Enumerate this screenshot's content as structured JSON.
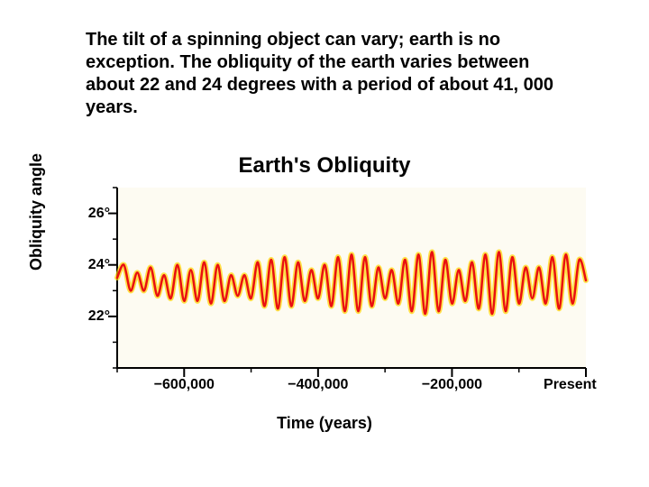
{
  "caption": "The tilt of a spinning object can vary;  earth is no exception.  The obliquity of the earth varies between about 22 and 24 degrees with a period of about 41, 000 years.",
  "chart": {
    "type": "line",
    "title": "Earth's Obliquity",
    "x_label": "Time (years)",
    "y_label": "Obliquity angle",
    "x_domain": [
      -700000,
      0
    ],
    "y_domain": [
      20,
      27
    ],
    "x_ticks": [
      {
        "v": -600000,
        "label": "−600,000"
      },
      {
        "v": -400000,
        "label": "−400,000"
      },
      {
        "v": -200000,
        "label": "−200,000"
      },
      {
        "v": 0,
        "label": "Present",
        "present": true
      }
    ],
    "y_ticks": [
      {
        "v": 22,
        "label": "22°"
      },
      {
        "v": 24,
        "label": "24°"
      },
      {
        "v": 26,
        "label": "26°"
      }
    ],
    "x_tick_len_major": 10,
    "x_tick_minor_step": 100000,
    "y_tick_len_major": 10,
    "y_tick_minor_step": 1,
    "axis_color": "#000000",
    "axis_width": 2,
    "background_color": "#fdfbf2",
    "series": {
      "stroke_primary": "#e91010",
      "stroke_glow": "#ffd400",
      "stroke_width": 2.5,
      "glow_width": 6,
      "points": [
        [
          -700000,
          23.5
        ],
        [
          -690000,
          24.0
        ],
        [
          -680000,
          23.0
        ],
        [
          -670000,
          23.7
        ],
        [
          -660000,
          23.0
        ],
        [
          -650000,
          23.9
        ],
        [
          -640000,
          22.8
        ],
        [
          -630000,
          23.6
        ],
        [
          -620000,
          22.7
        ],
        [
          -610000,
          24.0
        ],
        [
          -600000,
          22.6
        ],
        [
          -590000,
          23.8
        ],
        [
          -580000,
          22.6
        ],
        [
          -570000,
          24.1
        ],
        [
          -560000,
          22.5
        ],
        [
          -550000,
          24.0
        ],
        [
          -540000,
          22.6
        ],
        [
          -530000,
          23.6
        ],
        [
          -520000,
          22.8
        ],
        [
          -510000,
          23.6
        ],
        [
          -500000,
          22.7
        ],
        [
          -490000,
          24.1
        ],
        [
          -480000,
          22.4
        ],
        [
          -470000,
          24.2
        ],
        [
          -460000,
          22.3
        ],
        [
          -450000,
          24.3
        ],
        [
          -440000,
          22.4
        ],
        [
          -430000,
          24.1
        ],
        [
          -420000,
          22.6
        ],
        [
          -410000,
          23.8
        ],
        [
          -400000,
          22.7
        ],
        [
          -390000,
          24.0
        ],
        [
          -380000,
          22.4
        ],
        [
          -370000,
          24.3
        ],
        [
          -360000,
          22.2
        ],
        [
          -350000,
          24.4
        ],
        [
          -340000,
          22.2
        ],
        [
          -330000,
          24.3
        ],
        [
          -320000,
          22.4
        ],
        [
          -310000,
          23.9
        ],
        [
          -300000,
          22.7
        ],
        [
          -290000,
          23.8
        ],
        [
          -280000,
          22.5
        ],
        [
          -270000,
          24.2
        ],
        [
          -260000,
          22.2
        ],
        [
          -250000,
          24.4
        ],
        [
          -240000,
          22.1
        ],
        [
          -230000,
          24.5
        ],
        [
          -220000,
          22.2
        ],
        [
          -210000,
          24.2
        ],
        [
          -200000,
          22.5
        ],
        [
          -190000,
          23.8
        ],
        [
          -180000,
          22.6
        ],
        [
          -170000,
          24.1
        ],
        [
          -160000,
          22.3
        ],
        [
          -150000,
          24.4
        ],
        [
          -140000,
          22.1
        ],
        [
          -130000,
          24.5
        ],
        [
          -120000,
          22.2
        ],
        [
          -110000,
          24.3
        ],
        [
          -100000,
          22.5
        ],
        [
          -90000,
          23.9
        ],
        [
          -80000,
          22.7
        ],
        [
          -70000,
          23.9
        ],
        [
          -60000,
          22.5
        ],
        [
          -50000,
          24.3
        ],
        [
          -40000,
          22.3
        ],
        [
          -30000,
          24.4
        ],
        [
          -20000,
          22.5
        ],
        [
          -10000,
          24.2
        ],
        [
          0,
          23.4
        ]
      ]
    }
  },
  "caption_fontsize": 20,
  "title_fontsize": 24,
  "label_fontsize": 18,
  "tick_fontsize": 16
}
